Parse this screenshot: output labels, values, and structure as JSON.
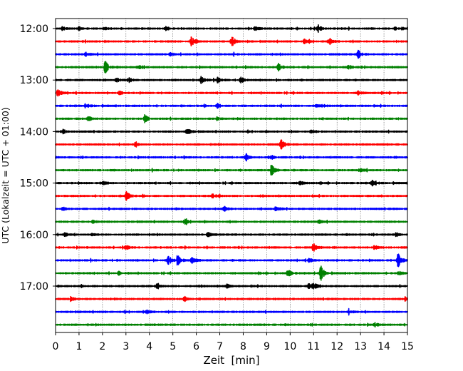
{
  "chart_data": {
    "type": "line",
    "title": "",
    "xlabel": "Zeit  [min]",
    "ylabel": "UTC (Lokalzeit = UTC + 01:00)",
    "xlim": [
      0,
      15
    ],
    "x_ticks": [
      "0",
      "1",
      "2",
      "3",
      "4",
      "5",
      "6",
      "7",
      "8",
      "9",
      "10",
      "11",
      "12",
      "13",
      "14",
      "15"
    ],
    "y_ticks": [
      "12:00",
      "13:00",
      "14:00",
      "15:00",
      "16:00",
      "17:00"
    ],
    "grid": "vertical dotted lines at each minute",
    "colors": [
      "#000000",
      "#ff0000",
      "#0000ff",
      "#008000"
    ],
    "trace_interval_minutes": 15,
    "series": [
      {
        "start": "12:00",
        "color": "#000000",
        "events": [
          [
            0.3,
            0.3
          ],
          [
            1.0,
            0.3
          ],
          [
            2.1,
            0.3
          ],
          [
            4.7,
            0.3
          ],
          [
            8.5,
            0.3
          ],
          [
            11.2,
            0.5
          ],
          [
            14.4,
            0.3
          ]
        ]
      },
      {
        "start": "12:15",
        "color": "#ff0000",
        "events": [
          [
            5.8,
            0.9
          ],
          [
            7.5,
            0.9
          ],
          [
            10.6,
            0.4
          ],
          [
            11.7,
            0.4
          ]
        ]
      },
      {
        "start": "12:30",
        "color": "#0000ff",
        "events": [
          [
            1.3,
            0.3
          ],
          [
            4.9,
            0.3
          ],
          [
            7.6,
            0.3
          ],
          [
            12.9,
            0.6
          ]
        ]
      },
      {
        "start": "12:45",
        "color": "#008000",
        "events": [
          [
            2.1,
            1.1
          ],
          [
            3.5,
            0.3
          ],
          [
            9.5,
            0.5
          ],
          [
            12.5,
            0.3
          ]
        ]
      },
      {
        "start": "13:00",
        "color": "#000000",
        "events": [
          [
            2.6,
            0.3
          ],
          [
            3.1,
            0.4
          ],
          [
            6.2,
            0.5
          ],
          [
            6.9,
            0.4
          ],
          [
            7.9,
            0.5
          ]
        ]
      },
      {
        "start": "13:15",
        "color": "#ff0000",
        "events": [
          [
            0.1,
            0.5
          ],
          [
            2.7,
            0.3
          ],
          [
            12.9,
            0.3
          ]
        ]
      },
      {
        "start": "13:30",
        "color": "#0000ff",
        "events": [
          [
            1.3,
            0.3
          ],
          [
            6.9,
            0.3
          ],
          [
            11.1,
            0.3
          ]
        ]
      },
      {
        "start": "13:45",
        "color": "#008000",
        "events": [
          [
            1.4,
            0.3
          ],
          [
            3.8,
            0.6
          ],
          [
            6.9,
            0.3
          ]
        ]
      },
      {
        "start": "14:00",
        "color": "#000000",
        "events": [
          [
            0.3,
            0.4
          ],
          [
            5.6,
            0.5
          ],
          [
            10.9,
            0.4
          ]
        ]
      },
      {
        "start": "14:15",
        "color": "#ff0000",
        "events": [
          [
            3.4,
            0.3
          ],
          [
            9.6,
            0.8
          ]
        ]
      },
      {
        "start": "14:30",
        "color": "#0000ff",
        "events": [
          [
            8.1,
            0.5
          ],
          [
            9.2,
            0.3
          ]
        ]
      },
      {
        "start": "14:45",
        "color": "#008000",
        "events": [
          [
            9.2,
            0.9
          ],
          [
            13.0,
            0.3
          ]
        ]
      },
      {
        "start": "15:00",
        "color": "#000000",
        "events": [
          [
            2.0,
            0.3
          ],
          [
            10.4,
            0.3
          ],
          [
            13.5,
            0.5
          ]
        ]
      },
      {
        "start": "15:15",
        "color": "#ff0000",
        "events": [
          [
            3.0,
            0.8
          ],
          [
            6.7,
            0.3
          ]
        ]
      },
      {
        "start": "15:30",
        "color": "#0000ff",
        "events": [
          [
            0.3,
            0.3
          ],
          [
            7.2,
            0.4
          ],
          [
            9.4,
            0.4
          ]
        ]
      },
      {
        "start": "15:45",
        "color": "#008000",
        "events": [
          [
            1.6,
            0.3
          ],
          [
            5.5,
            0.4
          ],
          [
            11.2,
            0.3
          ]
        ]
      },
      {
        "start": "16:00",
        "color": "#000000",
        "events": [
          [
            0.4,
            0.3
          ],
          [
            1.5,
            0.3
          ],
          [
            6.5,
            0.3
          ],
          [
            14.5,
            0.3
          ]
        ]
      },
      {
        "start": "16:15",
        "color": "#ff0000",
        "events": [
          [
            3.0,
            0.3
          ],
          [
            11.0,
            0.8
          ],
          [
            13.6,
            0.3
          ]
        ]
      },
      {
        "start": "16:30",
        "color": "#0000ff",
        "events": [
          [
            4.8,
            0.8
          ],
          [
            5.2,
            0.8
          ],
          [
            5.8,
            0.6
          ],
          [
            10.8,
            0.3
          ],
          [
            14.6,
            1.2
          ]
        ]
      },
      {
        "start": "16:45",
        "color": "#008000",
        "events": [
          [
            2.7,
            0.3
          ],
          [
            9.9,
            0.6
          ],
          [
            11.3,
            1.2
          ],
          [
            14.6,
            0.4
          ]
        ]
      },
      {
        "start": "17:00",
        "color": "#000000",
        "events": [
          [
            4.3,
            0.3
          ],
          [
            7.3,
            0.3
          ],
          [
            10.8,
            0.4
          ],
          [
            11.0,
            0.5
          ]
        ]
      },
      {
        "start": "17:15",
        "color": "#ff0000",
        "events": [
          [
            0.6,
            0.4
          ],
          [
            5.5,
            0.4
          ],
          [
            14.9,
            0.3
          ]
        ]
      },
      {
        "start": "17:30",
        "color": "#0000ff",
        "events": [
          [
            3.9,
            0.3
          ],
          [
            12.5,
            0.3
          ]
        ]
      },
      {
        "start": "17:45",
        "color": "#008000",
        "events": [
          [
            13.6,
            0.3
          ]
        ]
      }
    ]
  }
}
